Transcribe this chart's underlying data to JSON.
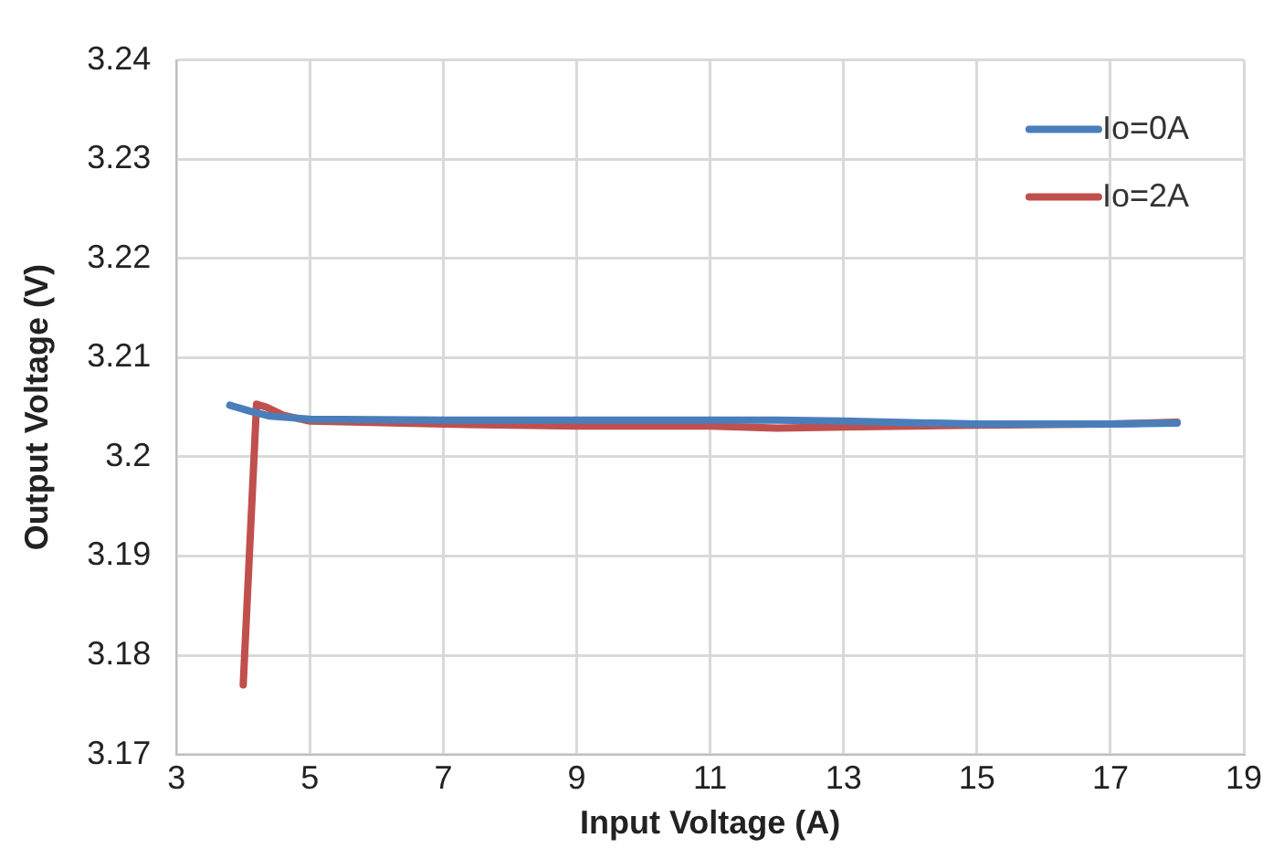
{
  "chart_data": {
    "type": "line",
    "xlabel": "Input Voltage (A)",
    "ylabel": "Output Voltage (V)",
    "xlim": [
      3,
      19
    ],
    "xticks": [
      3,
      5,
      7,
      9,
      11,
      13,
      15,
      17,
      19
    ],
    "ylim": [
      3.17,
      3.24
    ],
    "yticks": [
      3.17,
      3.18,
      3.19,
      3.2,
      3.21,
      3.22,
      3.23,
      3.24
    ],
    "grid": true,
    "legend": "top right",
    "marker": "none",
    "line_style": "solid",
    "series": [
      {
        "name": "Io=0A",
        "color": "#4a7ebb",
        "x": [
          3.8,
          4.1,
          4.4,
          5,
          7,
          9,
          11,
          12,
          13,
          15,
          17,
          18
        ],
        "values": [
          3.2052,
          3.2046,
          3.2041,
          3.2038,
          3.2037,
          3.2037,
          3.2037,
          3.2037,
          3.2036,
          3.2033,
          3.2033,
          3.2034
        ]
      },
      {
        "name": "Io=2A",
        "color": "#c0504d",
        "x": [
          4,
          4.2,
          4.35,
          4.6,
          5,
          7,
          9,
          11,
          12,
          13,
          15,
          17,
          18
        ],
        "values": [
          3.177,
          3.2053,
          3.205,
          3.2042,
          3.2036,
          3.2033,
          3.2031,
          3.2031,
          3.2029,
          3.203,
          3.2032,
          3.2033,
          3.2035
        ]
      }
    ]
  }
}
